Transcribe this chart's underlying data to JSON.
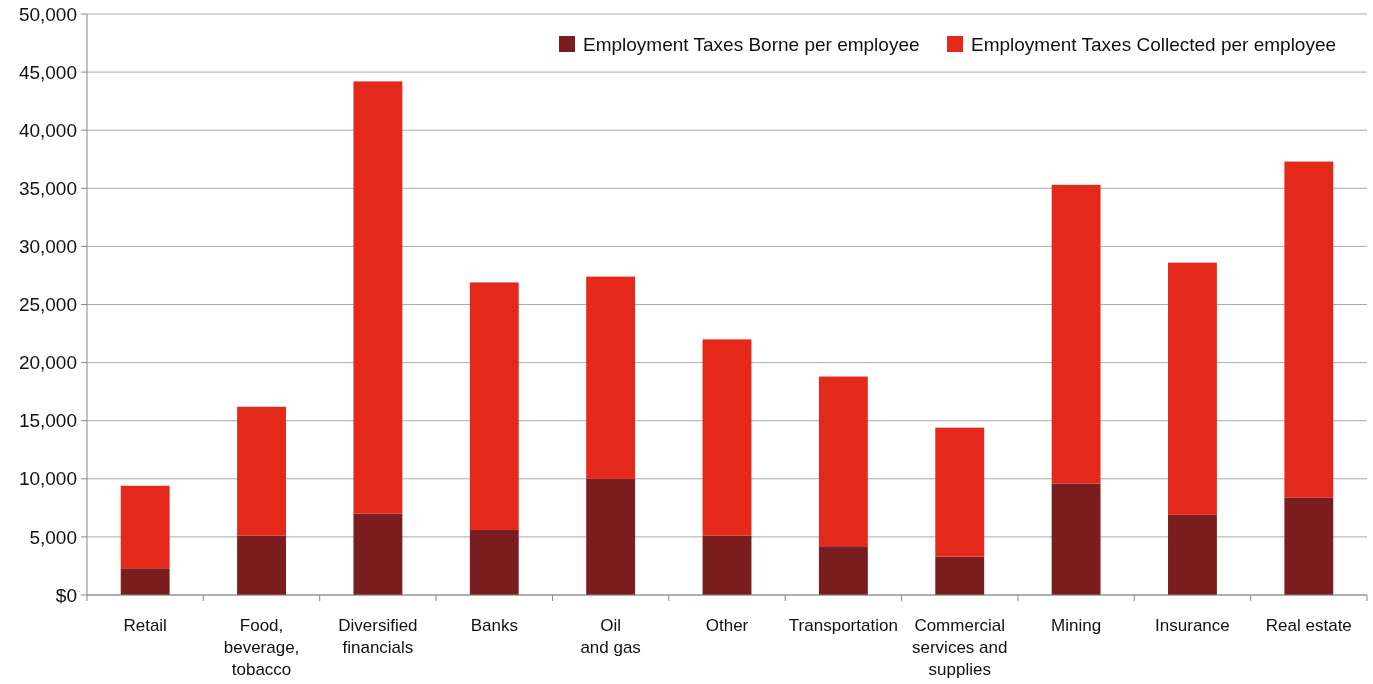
{
  "chart_data": {
    "type": "bar",
    "stacked": true,
    "categories": [
      "Retail",
      "Food,\nbeverage,\ntobacco",
      "Diversified\nfinancials",
      "Banks",
      "Oil\nand gas",
      "Other",
      "Transportation",
      "Commercial\nservices and\nsupplies",
      "Mining",
      "Insurance",
      "Real estate"
    ],
    "series": [
      {
        "name": "Employment Taxes Borne per employee",
        "color": "#7b1d1f",
        "values": [
          2300,
          5100,
          7000,
          5600,
          10000,
          5100,
          4200,
          3300,
          9600,
          6900,
          8400
        ]
      },
      {
        "name": "Employment Taxes Collected per employee",
        "color": "#e4291b",
        "values": [
          7100,
          11100,
          37200,
          21300,
          17400,
          16900,
          14600,
          11100,
          25700,
          21700,
          28900
        ]
      }
    ],
    "ylim": [
      0,
      50000
    ],
    "yticks": [
      {
        "value": 0,
        "label": "$0"
      },
      {
        "value": 5000,
        "label": "5,000"
      },
      {
        "value": 10000,
        "label": "10,000"
      },
      {
        "value": 15000,
        "label": "15,000"
      },
      {
        "value": 20000,
        "label": "20,000"
      },
      {
        "value": 25000,
        "label": "25,000"
      },
      {
        "value": 30000,
        "label": "30,000"
      },
      {
        "value": 35000,
        "label": "35,000"
      },
      {
        "value": 40000,
        "label": "40,000"
      },
      {
        "value": 45000,
        "label": "45,000"
      },
      {
        "value": 50000,
        "label": "50,000"
      }
    ],
    "grid": "y",
    "legend": "top right"
  }
}
